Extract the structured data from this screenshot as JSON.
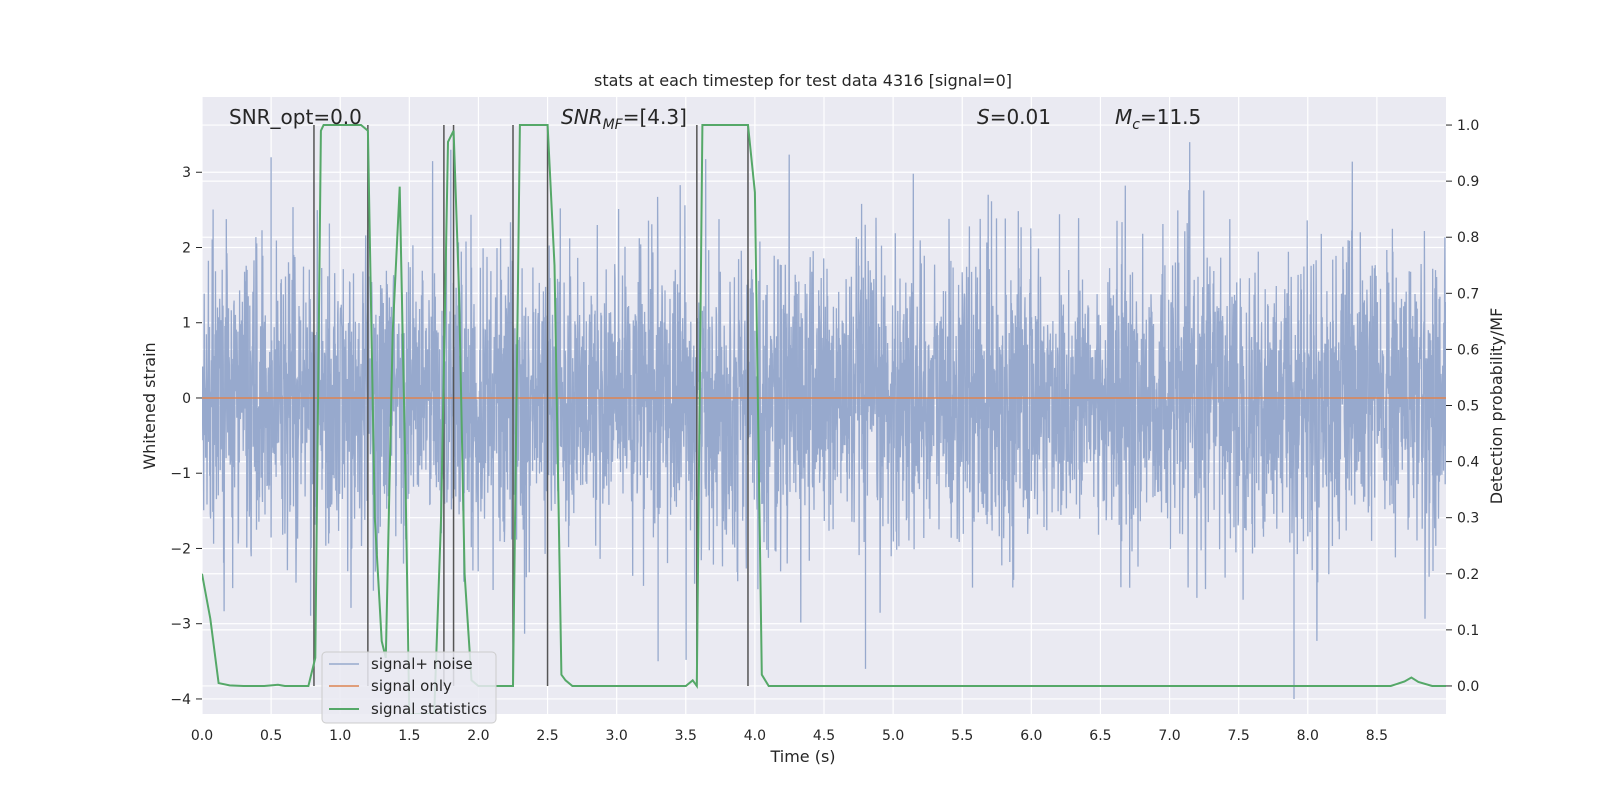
{
  "chart_data": {
    "type": "line",
    "title": "stats at each timestep for test data 4316 [signal=0]",
    "xlabel": "Time (s)",
    "ylabel_left": "Whitened strain",
    "ylabel_right": "Detection probability/MF",
    "xlim": [
      0.0,
      9.0
    ],
    "ylim_left": [
      -4.2,
      4.0
    ],
    "ylim_right": [
      -0.05,
      1.05
    ],
    "x_ticks": [
      0.0,
      0.5,
      1.0,
      1.5,
      2.0,
      2.5,
      3.0,
      3.5,
      4.0,
      4.5,
      5.0,
      5.5,
      6.0,
      6.5,
      7.0,
      7.5,
      8.0,
      8.5
    ],
    "x_tick_labels": [
      "0.0",
      "0.5",
      "1.0",
      "1.5",
      "2.0",
      "2.5",
      "3.0",
      "3.5",
      "4.0",
      "4.5",
      "5.0",
      "5.5",
      "6.0",
      "6.5",
      "7.0",
      "7.5",
      "8.0",
      "8.5"
    ],
    "y_left_ticks": [
      -4,
      -3,
      -2,
      -1,
      0,
      1,
      2,
      3
    ],
    "y_left_tick_labels": [
      "−4",
      "−3",
      "−2",
      "−1",
      "0",
      "1",
      "2",
      "3"
    ],
    "y_right_ticks": [
      0.0,
      0.1,
      0.2,
      0.3,
      0.4,
      0.5,
      0.6,
      0.7,
      0.8,
      0.9,
      1.0
    ],
    "y_right_tick_labels": [
      "0.0",
      "0.1",
      "0.2",
      "0.3",
      "0.4",
      "0.5",
      "0.6",
      "0.7",
      "0.8",
      "0.9",
      "1.0"
    ],
    "grid": true,
    "legend_position": "lower-left",
    "annotations": {
      "snr_opt": "SNR_opt=0.0",
      "snr_mf_main": "SNR",
      "snr_mf_sub": "MF",
      "snr_mf_value": "=[4.3]",
      "s_main": "S",
      "s_value": "=0.01",
      "mc_main": "M",
      "mc_sub": "c",
      "mc_value": "=11.5"
    },
    "series": [
      {
        "name": "signal+ noise",
        "color": "#97a9cd",
        "axis": "left",
        "kind": "noise",
        "sigma": 1.0,
        "dt": 0.002,
        "notable_extremes": [
          [
            0.5,
            3.2
          ],
          [
            1.8,
            3.3
          ],
          [
            7.9,
            -4.0
          ],
          [
            4.8,
            -3.6
          ],
          [
            3.3,
            -3.5
          ]
        ]
      },
      {
        "name": "signal only",
        "color": "#dd8452",
        "axis": "left",
        "x": [
          0.0,
          9.0
        ],
        "y": [
          0.0,
          0.0
        ]
      },
      {
        "name": "signal statistics",
        "color": "#55a868",
        "axis": "right",
        "x": [
          0.0,
          0.06,
          0.12,
          0.2,
          0.3,
          0.45,
          0.55,
          0.6,
          0.7,
          0.77,
          0.82,
          0.86,
          0.88,
          0.93,
          1.0,
          1.15,
          1.2,
          1.25,
          1.3,
          1.33,
          1.38,
          1.43,
          1.47,
          1.5,
          1.55,
          1.6,
          1.68,
          1.73,
          1.78,
          1.82,
          1.86,
          1.9,
          1.95,
          2.0,
          2.05,
          2.15,
          2.25,
          2.3,
          2.33,
          2.5,
          2.55,
          2.6,
          2.63,
          2.68,
          2.75,
          3.0,
          3.5,
          3.55,
          3.58,
          3.62,
          3.66,
          3.95,
          4.0,
          4.05,
          4.1,
          4.15,
          4.5,
          5.0,
          6.0,
          7.0,
          8.0,
          8.6,
          8.7,
          8.75,
          8.8,
          8.9,
          9.0
        ],
        "y": [
          0.2,
          0.12,
          0.005,
          0.001,
          0.0,
          0.0,
          0.002,
          0.0,
          0.0,
          0.0,
          0.05,
          0.99,
          1.0,
          1.0,
          1.0,
          1.0,
          0.99,
          0.3,
          0.08,
          0.05,
          0.63,
          0.89,
          0.4,
          -0.05,
          -0.05,
          -0.05,
          -0.05,
          0.3,
          0.97,
          0.99,
          0.7,
          0.2,
          0.01,
          0.0,
          0.0,
          0.0,
          0.0,
          1.0,
          1.0,
          1.0,
          0.75,
          0.02,
          0.01,
          0.0,
          0.0,
          0.0,
          0.0,
          0.01,
          0.0,
          1.0,
          1.0,
          1.0,
          0.88,
          0.02,
          0.0,
          0.0,
          0.0,
          0.0,
          0.0,
          0.0,
          0.0,
          0.0,
          0.008,
          0.015,
          0.007,
          0.0,
          0.0
        ]
      }
    ],
    "vertical_markers": {
      "color": "#555555",
      "lines": [
        {
          "x": 0.81,
          "ylim": [
            0.0,
            1.0
          ]
        },
        {
          "x": 1.2,
          "ylim": [
            0.0,
            1.0
          ]
        },
        {
          "x": 1.75,
          "ylim": [
            0.0,
            1.0
          ]
        },
        {
          "x": 1.82,
          "ylim": [
            0.0,
            1.0
          ]
        },
        {
          "x": 2.25,
          "ylim": [
            0.0,
            1.0
          ]
        },
        {
          "x": 2.5,
          "ylim": [
            0.0,
            1.0
          ]
        },
        {
          "x": 3.58,
          "ylim": [
            0.0,
            1.0
          ]
        },
        {
          "x": 3.95,
          "ylim": [
            0.0,
            1.0
          ]
        }
      ]
    },
    "colors": {
      "plot_background": "#eaeaf2",
      "grid": "#ffffff",
      "legend_background": "#eaeaf2"
    }
  }
}
